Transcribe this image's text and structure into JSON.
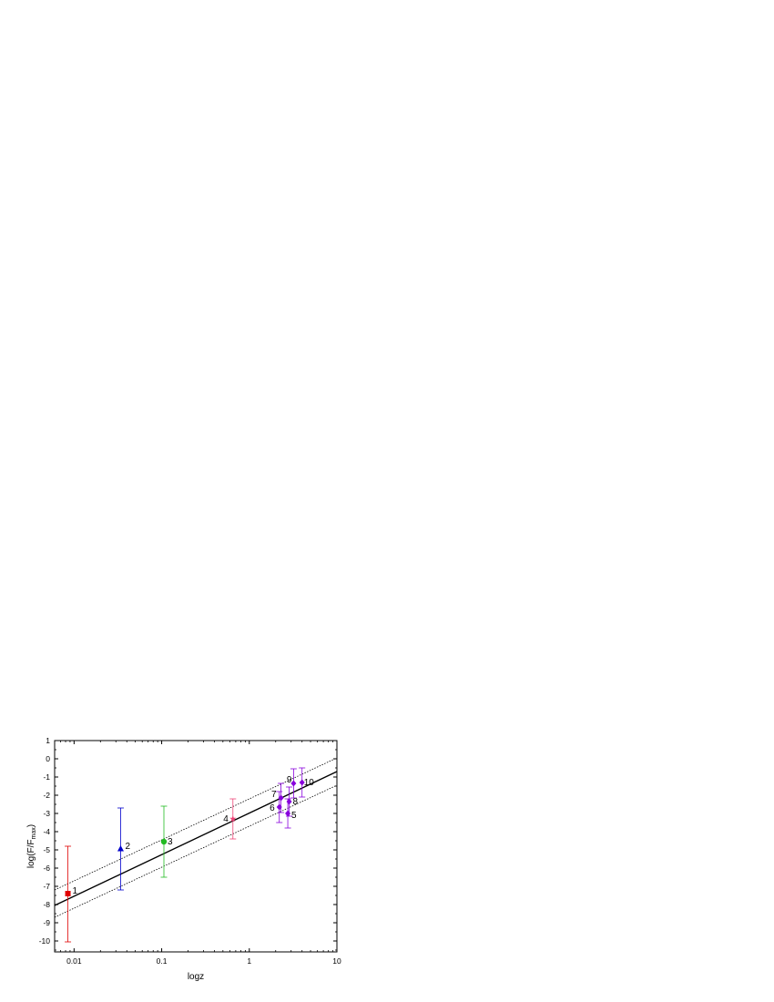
{
  "chart_data": {
    "type": "scatter",
    "xlabel": "logz",
    "ylabel": "log(F/F_max)",
    "ylabel_parts": {
      "main": "log(F/F",
      "sub": "max",
      "close": ")"
    },
    "x_scale": "log",
    "xlim": [
      0.006,
      10
    ],
    "ylim": [
      -10.6,
      1.0
    ],
    "x_ticks": [
      {
        "value": 0.01,
        "label": "0.01"
      },
      {
        "value": 0.1,
        "label": "0.1"
      },
      {
        "value": 1,
        "label": "1"
      },
      {
        "value": 10,
        "label": "10"
      }
    ],
    "y_ticks": [
      {
        "value": 1,
        "label": "1"
      },
      {
        "value": 0,
        "label": "0"
      },
      {
        "value": -1,
        "label": "-1"
      },
      {
        "value": -2,
        "label": "-2"
      },
      {
        "value": -3,
        "label": "-3"
      },
      {
        "value": -4,
        "label": "-4"
      },
      {
        "value": -5,
        "label": "-5"
      },
      {
        "value": -6,
        "label": "-6"
      },
      {
        "value": -7,
        "label": "-7"
      },
      {
        "value": -8,
        "label": "-8"
      },
      {
        "value": -9,
        "label": "-9"
      },
      {
        "value": -10,
        "label": "-10"
      }
    ],
    "grid": false,
    "legend": null,
    "points": [
      {
        "label": "1",
        "x": 0.0085,
        "y": -7.4,
        "err_low": 2.65,
        "err_high": 2.6,
        "marker": "square",
        "color": "#e00000"
      },
      {
        "label": "2",
        "x": 0.034,
        "y": -4.95,
        "err_low": 2.25,
        "err_high": 2.25,
        "marker": "triangle",
        "color": "#0000cc"
      },
      {
        "label": "3",
        "x": 0.106,
        "y": -4.55,
        "err_low": 1.95,
        "err_high": 1.95,
        "marker": "circle",
        "color": "#22bb22"
      },
      {
        "label": "4",
        "x": 0.65,
        "y": -3.3,
        "err_low": 1.1,
        "err_high": 1.1,
        "marker": "star",
        "color": "#ee4477"
      },
      {
        "label": "5",
        "x": 2.75,
        "y": -3.0,
        "err_low": 0.8,
        "err_high": 0.8,
        "marker": "diamond",
        "color": "#8800dd"
      },
      {
        "label": "6",
        "x": 2.2,
        "y": -2.65,
        "err_low": 0.85,
        "err_high": 0.85,
        "marker": "diamond",
        "color": "#8800dd"
      },
      {
        "label": "7",
        "x": 2.3,
        "y": -2.15,
        "err_low": 0.8,
        "err_high": 0.8,
        "marker": "diamond",
        "color": "#8800dd"
      },
      {
        "label": "8",
        "x": 2.85,
        "y": -2.35,
        "err_low": 0.8,
        "err_high": 0.8,
        "marker": "diamond",
        "color": "#8800dd"
      },
      {
        "label": "9",
        "x": 3.2,
        "y": -1.35,
        "err_low": 0.8,
        "err_high": 0.8,
        "marker": "diamond",
        "color": "#8800dd"
      },
      {
        "label": "10",
        "x": 4.0,
        "y": -1.3,
        "err_low": 0.8,
        "err_high": 0.8,
        "marker": "diamond",
        "color": "#8800dd"
      }
    ],
    "fit": {
      "style": "solid",
      "color": "#000000",
      "x": [
        0.006,
        10
      ],
      "y": [
        -8.05,
        -0.7
      ]
    },
    "bounds": [
      {
        "style": "dotted",
        "color": "#000000",
        "x": [
          0.006,
          10
        ],
        "y": [
          -7.2,
          0.05
        ]
      },
      {
        "style": "dotted",
        "color": "#000000",
        "x": [
          0.006,
          10
        ],
        "y": [
          -8.7,
          -1.45
        ]
      }
    ]
  }
}
